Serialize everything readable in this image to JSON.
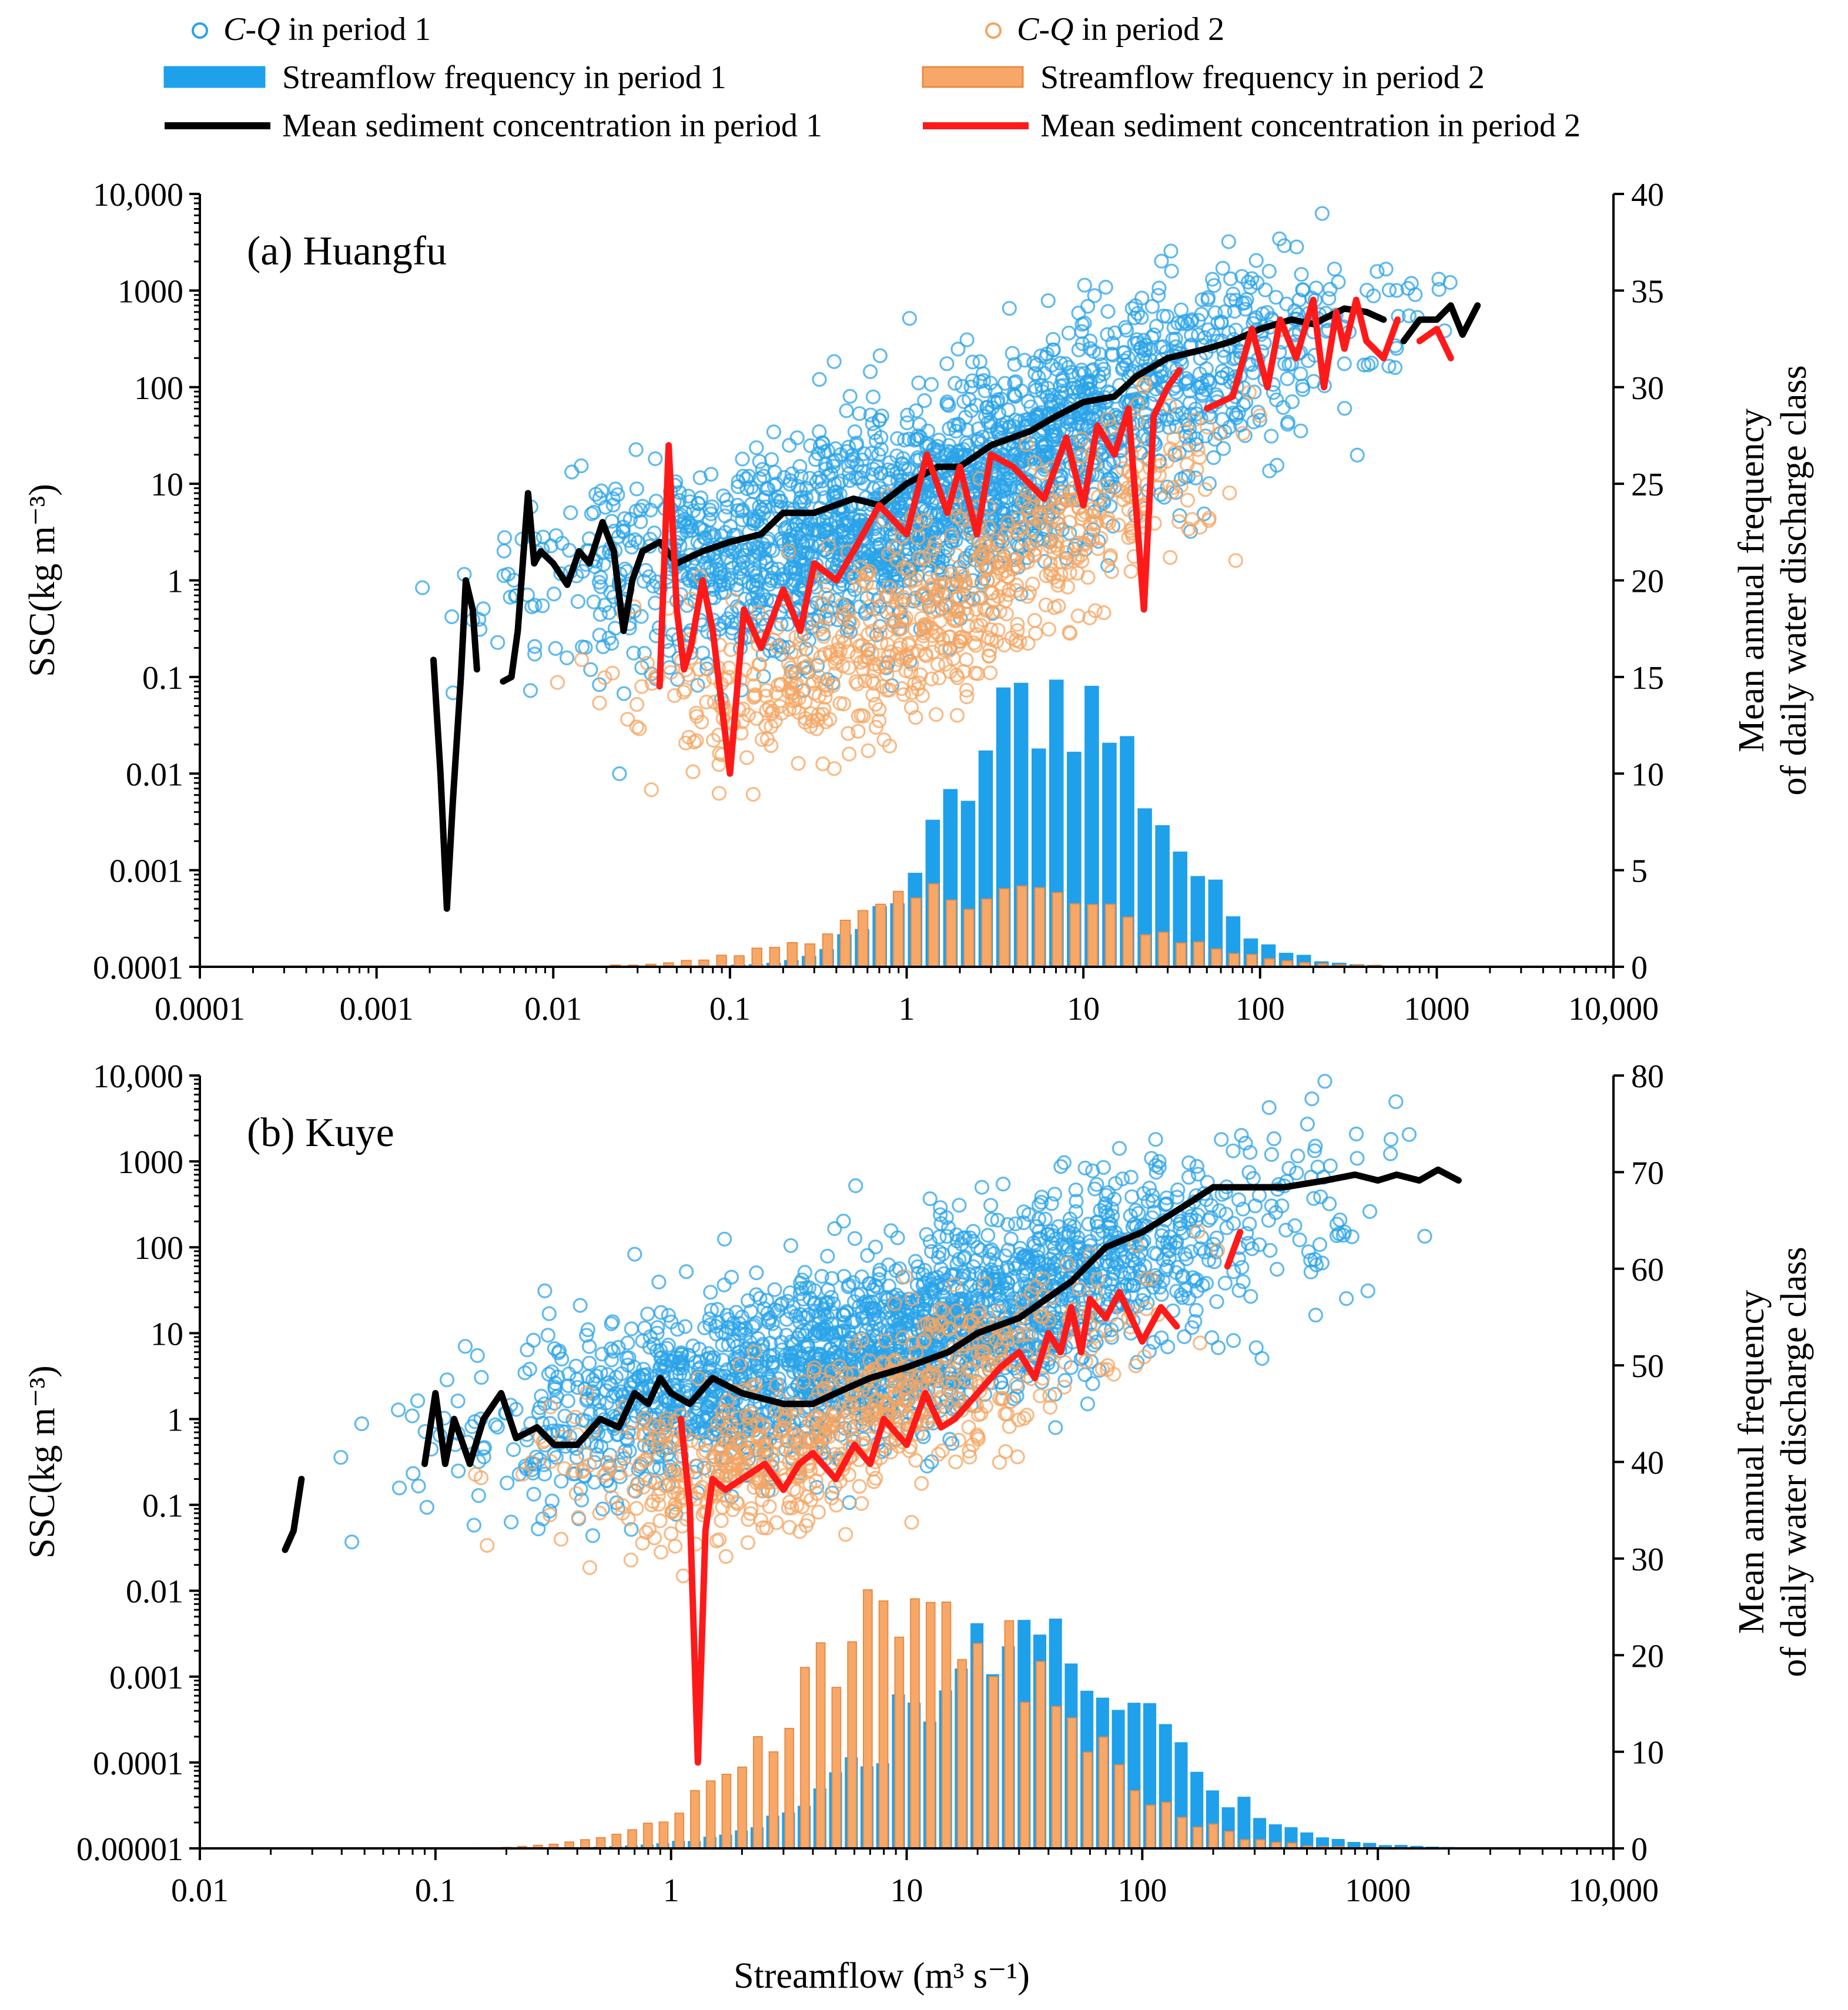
{
  "legend": {
    "items": [
      {
        "key": "cq1",
        "kind": "circle",
        "color": "#29a3e8",
        "prefix": "C-Q",
        "label": " in period 1"
      },
      {
        "key": "cq2",
        "kind": "circle",
        "color": "#f5a460",
        "prefix": "C-Q",
        "label": " in period 2"
      },
      {
        "key": "freq1",
        "kind": "patch",
        "color": "#1fa0eb",
        "prefix": "",
        "label": "Streamflow frequency in period 1"
      },
      {
        "key": "freq2",
        "kind": "patch",
        "color": "#f7a868",
        "prefix": "",
        "label": "Streamflow frequency in period 2"
      },
      {
        "key": "mean1",
        "kind": "line",
        "color": "#000000",
        "prefix": "",
        "label": "Mean sediment concentration in period 1"
      },
      {
        "key": "mean2",
        "kind": "line",
        "color": "#ff1a1a",
        "prefix": "",
        "label": "Mean sediment concentration in period 2"
      }
    ]
  },
  "chart_data": [
    {
      "type": "scatter",
      "title": "(a) Huangfu",
      "xlabel": "Streamflow (m³ s⁻¹)",
      "ylabel": "SSC(kg m⁻³)",
      "y2label": [
        "Mean annual frequency",
        "of daily water discharge class"
      ],
      "xscale": "log",
      "xlim": [
        0.0001,
        10000
      ],
      "xticks": [
        0.0001,
        0.001,
        0.01,
        0.1,
        1,
        10,
        100,
        1000,
        10000
      ],
      "xtick_labels": [
        "0.0001",
        "0.001",
        "0.01",
        "0.1",
        "1",
        "10",
        "100",
        "1000",
        "10,000"
      ],
      "yscale": "log",
      "ylim": [
        0.0001,
        10000
      ],
      "yticks": [
        0.0001,
        0.001,
        0.01,
        0.1,
        1,
        10,
        100,
        1000,
        10000
      ],
      "ytick_labels": [
        "0.0001",
        "0.001",
        "0.01",
        "0.1",
        "1",
        "10",
        "100",
        "1000",
        "10,000"
      ],
      "y2lim": [
        0,
        40
      ],
      "y2ticks": [
        0,
        5,
        10,
        15,
        20,
        25,
        30,
        35,
        40
      ],
      "scatter_period1_trend": {
        "q": [
          0.001,
          0.01,
          0.1,
          1,
          10,
          100,
          1000,
          2000
        ],
        "ssc": [
          0.5,
          1,
          1.5,
          4,
          40,
          300,
          600,
          700
        ],
        "q_range": [
          0.001,
          2500
        ],
        "approx_count": 2200
      },
      "scatter_period2_trend": {
        "q": [
          0.005,
          0.05,
          0.1,
          1,
          10,
          100,
          300
        ],
        "ssc": [
          0.3,
          0.08,
          0.05,
          0.3,
          3,
          40,
          200
        ],
        "q_range": [
          0.005,
          400
        ],
        "approx_count": 700
      },
      "mean_period1": [
        [
          [
            0.0021,
            0.15
          ],
          [
            0.0023,
            0.01
          ],
          [
            0.0025,
            0.0004
          ],
          [
            0.0027,
            0.005
          ],
          [
            0.003,
            0.1
          ],
          [
            0.0032,
            1
          ],
          [
            0.0035,
            0.5
          ],
          [
            0.0037,
            0.12
          ]
        ],
        [
          [
            0.0052,
            0.09
          ],
          [
            0.0058,
            0.1
          ],
          [
            0.0063,
            0.3
          ],
          [
            0.0068,
            2
          ],
          [
            0.0072,
            8
          ],
          [
            0.0078,
            1.5
          ],
          [
            0.0085,
            2
          ],
          [
            0.01,
            1.5
          ],
          [
            0.012,
            0.9
          ],
          [
            0.014,
            2
          ],
          [
            0.016,
            1.5
          ],
          [
            0.019,
            4
          ],
          [
            0.022,
            2
          ],
          [
            0.025,
            0.3
          ],
          [
            0.028,
            1
          ],
          [
            0.032,
            2
          ],
          [
            0.04,
            2.5
          ],
          [
            0.05,
            1.5
          ],
          [
            0.07,
            2
          ],
          [
            0.1,
            2.5
          ],
          [
            0.15,
            3
          ],
          [
            0.2,
            5
          ],
          [
            0.3,
            5
          ],
          [
            0.5,
            7
          ],
          [
            0.7,
            6
          ],
          [
            1,
            10
          ],
          [
            1.5,
            15
          ],
          [
            2,
            15
          ],
          [
            3,
            25
          ],
          [
            5,
            35
          ],
          [
            7,
            50
          ],
          [
            10,
            70
          ],
          [
            15,
            80
          ],
          [
            20,
            130
          ],
          [
            30,
            200
          ],
          [
            50,
            250
          ],
          [
            70,
            300
          ],
          [
            100,
            400
          ],
          [
            150,
            500
          ],
          [
            200,
            450
          ],
          [
            300,
            650
          ],
          [
            400,
            600
          ],
          [
            500,
            500
          ]
        ],
        [
          [
            650,
            300
          ],
          [
            800,
            500
          ],
          [
            1000,
            500
          ],
          [
            1200,
            700
          ],
          [
            1400,
            350
          ],
          [
            1700,
            700
          ]
        ]
      ],
      "mean_period2": [
        [
          [
            0.04,
            0.08
          ],
          [
            0.045,
            25
          ],
          [
            0.05,
            0.5
          ],
          [
            0.055,
            0.12
          ],
          [
            0.06,
            0.2
          ],
          [
            0.07,
            1
          ],
          [
            0.08,
            0.3
          ],
          [
            0.1,
            0.01
          ],
          [
            0.12,
            0.5
          ],
          [
            0.15,
            0.2
          ],
          [
            0.2,
            0.8
          ],
          [
            0.25,
            0.3
          ],
          [
            0.3,
            1.5
          ],
          [
            0.4,
            1
          ],
          [
            0.5,
            2
          ],
          [
            0.7,
            6
          ],
          [
            1,
            3
          ],
          [
            1.3,
            20
          ],
          [
            1.7,
            5
          ],
          [
            2,
            15
          ],
          [
            2.5,
            3
          ],
          [
            3,
            20
          ],
          [
            4,
            15
          ],
          [
            6,
            7
          ],
          [
            8,
            30
          ],
          [
            10,
            6
          ],
          [
            12,
            40
          ],
          [
            15,
            20
          ],
          [
            18,
            60
          ],
          [
            22,
            0.5
          ],
          [
            25,
            50
          ],
          [
            30,
            100
          ],
          [
            35,
            150
          ]
        ],
        [
          [
            50,
            60
          ],
          [
            70,
            80
          ],
          [
            90,
            400
          ],
          [
            110,
            100
          ],
          [
            130,
            500
          ],
          [
            160,
            200
          ],
          [
            200,
            800
          ],
          [
            230,
            100
          ],
          [
            270,
            600
          ],
          [
            300,
            250
          ],
          [
            350,
            800
          ],
          [
            400,
            300
          ],
          [
            500,
            200
          ],
          [
            600,
            500
          ]
        ],
        [
          [
            800,
            300
          ],
          [
            1000,
            400
          ],
          [
            1200,
            200
          ]
        ]
      ],
      "freq_period1": {
        "bin_edges": [
          0.0001,
          10000
        ],
        "nbins": 80,
        "peak_q": 7.0,
        "peak_value": 14.2,
        "shape": "log-normal"
      },
      "freq_period2": {
        "bin_edges": [
          0.0001,
          10000
        ],
        "nbins": 80,
        "peak_q": 3.0,
        "peak_value": 4.0,
        "shape": "broad"
      }
    },
    {
      "type": "scatter",
      "title": "(b) Kuye",
      "xlabel": "Streamflow (m³ s⁻¹)",
      "ylabel": "SSC(kg m⁻³)",
      "y2label": [
        "Mean annual frequency",
        "of daily water discharge class"
      ],
      "xscale": "log",
      "xlim": [
        0.01,
        10000
      ],
      "xticks": [
        0.01,
        0.1,
        1,
        10,
        100,
        1000,
        10000
      ],
      "xtick_labels": [
        "0.01",
        "0.1",
        "1",
        "10",
        "100",
        "1000",
        "10,000"
      ],
      "yscale": "log",
      "ylim": [
        1e-05,
        10000
      ],
      "yticks": [
        1e-05,
        0.0001,
        0.001,
        0.01,
        0.1,
        1,
        10,
        100,
        1000,
        10000
      ],
      "ytick_labels": [
        "0.00001",
        "0.0001",
        "0.001",
        "0.01",
        "0.1",
        "1",
        "10",
        "100",
        "1000",
        "10,000"
      ],
      "y2lim": [
        0,
        80
      ],
      "y2ticks": [
        0,
        10,
        20,
        30,
        40,
        50,
        60,
        70,
        80
      ],
      "scatter_period1_trend": {
        "q": [
          0.03,
          0.1,
          1,
          10,
          100,
          1000,
          2000
        ],
        "ssc": [
          0.1,
          0.5,
          1.5,
          8,
          80,
          500,
          700
        ],
        "q_range": [
          0.03,
          2500
        ],
        "approx_count": 2200
      },
      "scatter_period2_trend": {
        "q": [
          0.1,
          1,
          5,
          10,
          50,
          200
        ],
        "ssc": [
          0.3,
          0.2,
          0.6,
          2,
          8,
          40
        ],
        "q_range": [
          0.1,
          300
        ],
        "approx_count": 700
      },
      "mean_period1": [
        [
          [
            0.023,
            0.03
          ],
          [
            0.025,
            0.05
          ],
          [
            0.027,
            0.2
          ]
        ],
        [
          [
            0.09,
            0.3
          ],
          [
            0.1,
            2
          ],
          [
            0.11,
            0.3
          ],
          [
            0.12,
            1
          ],
          [
            0.14,
            0.3
          ],
          [
            0.16,
            1
          ],
          [
            0.19,
            2
          ],
          [
            0.22,
            0.6
          ],
          [
            0.27,
            0.8
          ],
          [
            0.32,
            0.5
          ],
          [
            0.4,
            0.5
          ],
          [
            0.5,
            1
          ],
          [
            0.6,
            0.8
          ],
          [
            0.7,
            2
          ],
          [
            0.8,
            1.5
          ],
          [
            0.9,
            3
          ],
          [
            1,
            2
          ],
          [
            1.2,
            1.5
          ],
          [
            1.5,
            3
          ],
          [
            2,
            2
          ],
          [
            3,
            1.5
          ],
          [
            4,
            1.5
          ],
          [
            5,
            2
          ],
          [
            7,
            3
          ],
          [
            10,
            4
          ],
          [
            15,
            6
          ],
          [
            20,
            10
          ],
          [
            30,
            15
          ],
          [
            50,
            40
          ],
          [
            70,
            100
          ],
          [
            100,
            150
          ],
          [
            150,
            300
          ],
          [
            200,
            500
          ],
          [
            300,
            500
          ],
          [
            400,
            500
          ],
          [
            600,
            600
          ],
          [
            800,
            700
          ],
          [
            1000,
            600
          ],
          [
            1200,
            700
          ],
          [
            1500,
            600
          ],
          [
            1800,
            800
          ],
          [
            2200,
            600
          ]
        ]
      ],
      "mean_period2": [
        [
          [
            1.1,
            1
          ],
          [
            1.2,
            0.1
          ],
          [
            1.3,
            0.0001
          ],
          [
            1.4,
            0.05
          ],
          [
            1.5,
            0.2
          ],
          [
            1.7,
            0.15
          ],
          [
            2,
            0.2
          ],
          [
            2.5,
            0.3
          ],
          [
            3,
            0.15
          ],
          [
            3.5,
            0.3
          ],
          [
            4,
            0.4
          ],
          [
            5,
            0.2
          ],
          [
            6,
            0.5
          ],
          [
            7,
            0.3
          ],
          [
            8,
            1
          ],
          [
            10,
            0.5
          ],
          [
            12,
            2
          ],
          [
            14,
            0.8
          ],
          [
            16,
            1
          ],
          [
            20,
            2
          ],
          [
            25,
            4
          ],
          [
            30,
            6
          ],
          [
            35,
            3
          ],
          [
            40,
            10
          ],
          [
            45,
            6
          ],
          [
            50,
            20
          ],
          [
            55,
            6
          ],
          [
            60,
            25
          ],
          [
            70,
            15
          ],
          [
            80,
            30
          ],
          [
            100,
            8
          ],
          [
            120,
            20
          ],
          [
            140,
            12
          ]
        ],
        [
          [
            230,
            60
          ],
          [
            260,
            150
          ]
        ]
      ],
      "freq_period1": {
        "bin_edges": [
          0.01,
          10000
        ],
        "nbins": 90,
        "peak_q": 30,
        "peak_value": 20,
        "shape": "log-normal"
      },
      "freq_period2": {
        "bin_edges": [
          0.01,
          10000
        ],
        "nbins": 90,
        "peak_q": 12,
        "peak_value": 24,
        "shape": "log-normal"
      }
    }
  ]
}
